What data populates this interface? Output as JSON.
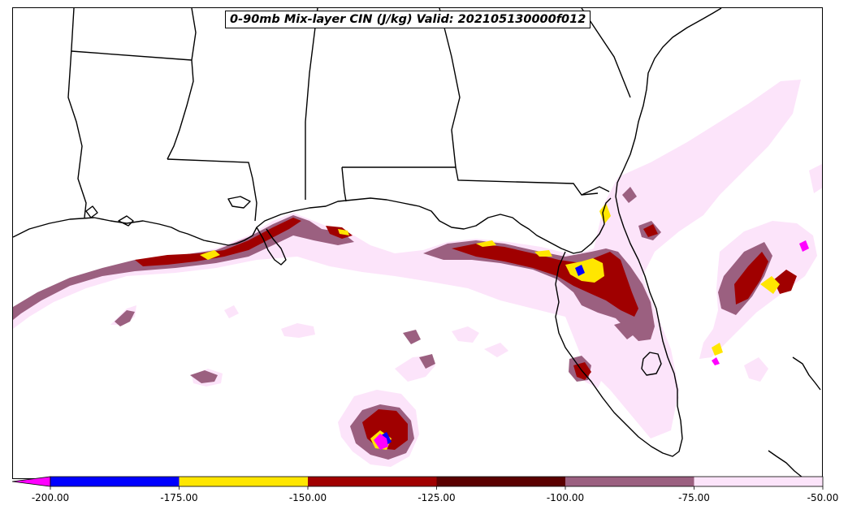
{
  "title": "0-90mb Mix-layer CIN (J/kg) Valid: 202105130000f012",
  "colorbar": {
    "ticks": [
      "-200.00",
      "-175.00",
      "-150.00",
      "-125.00",
      "-100.00",
      "-75.00",
      "-50.00"
    ],
    "bins": [
      {
        "from": -200,
        "to": -175,
        "color": "#0000ff"
      },
      {
        "from": -175,
        "to": -150,
        "color": "#ffe600"
      },
      {
        "from": -150,
        "to": -125,
        "color": "#a00000"
      },
      {
        "from": -125,
        "to": -100,
        "color": "#5a0000"
      },
      {
        "from": -100,
        "to": -75,
        "color": "#9b6080"
      },
      {
        "from": -75,
        "to": -50,
        "color": "#fce4fa"
      }
    ],
    "extend_low_color": "#ff00ff",
    "range": [
      -200,
      -50
    ]
  },
  "colors": {
    "coast": "#000000",
    "background": "#ffffff"
  }
}
